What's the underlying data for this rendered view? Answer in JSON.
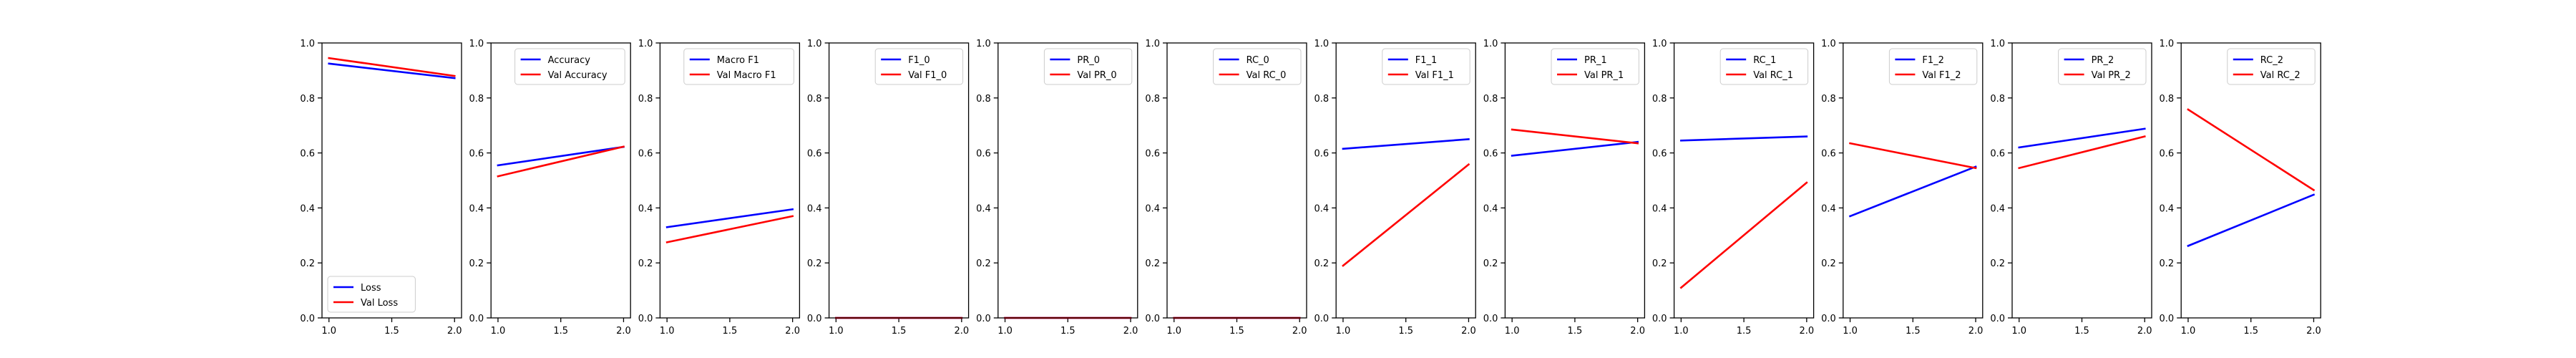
{
  "colors": {
    "train": "#0000ff",
    "val": "#ff0000"
  },
  "chart_data": [
    {
      "type": "line",
      "title": "",
      "xlabel": "",
      "ylabel": "",
      "xlim": [
        1.0,
        2.0
      ],
      "ylim": [
        0.0,
        1.0
      ],
      "x": [
        1.0,
        2.0
      ],
      "xticks": [
        "1.0",
        "1.5",
        "2.0"
      ],
      "yticks": [
        "0.0",
        "0.2",
        "0.4",
        "0.6",
        "0.8",
        "1.0"
      ],
      "legend": "lower-left",
      "series": [
        {
          "name": "Loss",
          "values": [
            0.925,
            0.872
          ]
        },
        {
          "name": "Val Loss",
          "values": [
            0.945,
            0.88
          ]
        }
      ]
    },
    {
      "type": "line",
      "title": "",
      "xlabel": "",
      "ylabel": "",
      "xlim": [
        1.0,
        2.0
      ],
      "ylim": [
        0.0,
        1.0
      ],
      "x": [
        1.0,
        2.0
      ],
      "xticks": [
        "1.0",
        "1.5",
        "2.0"
      ],
      "yticks": [
        "0.0",
        "0.2",
        "0.4",
        "0.6",
        "0.8",
        "1.0"
      ],
      "legend": "upper-right",
      "series": [
        {
          "name": "Accuracy",
          "values": [
            0.555,
            0.622
          ]
        },
        {
          "name": "Val Accuracy",
          "values": [
            0.515,
            0.623
          ]
        }
      ]
    },
    {
      "type": "line",
      "title": "",
      "xlabel": "",
      "ylabel": "",
      "xlim": [
        1.0,
        2.0
      ],
      "ylim": [
        0.0,
        1.0
      ],
      "x": [
        1.0,
        2.0
      ],
      "xticks": [
        "1.0",
        "1.5",
        "2.0"
      ],
      "yticks": [
        "0.0",
        "0.2",
        "0.4",
        "0.6",
        "0.8",
        "1.0"
      ],
      "legend": "upper-right",
      "series": [
        {
          "name": "Macro F1",
          "values": [
            0.33,
            0.395
          ]
        },
        {
          "name": "Val Macro F1",
          "values": [
            0.275,
            0.37
          ]
        }
      ]
    },
    {
      "type": "line",
      "title": "",
      "xlabel": "",
      "ylabel": "",
      "xlim": [
        1.0,
        2.0
      ],
      "ylim": [
        0.0,
        1.0
      ],
      "x": [
        1.0,
        2.0
      ],
      "xticks": [
        "1.0",
        "1.5",
        "2.0"
      ],
      "yticks": [
        "0.0",
        "0.2",
        "0.4",
        "0.6",
        "0.8",
        "1.0"
      ],
      "legend": "upper-right",
      "series": [
        {
          "name": "F1_0",
          "values": [
            0.0,
            0.0
          ]
        },
        {
          "name": "Val F1_0",
          "values": [
            0.0,
            0.0
          ]
        }
      ]
    },
    {
      "type": "line",
      "title": "",
      "xlabel": "",
      "ylabel": "",
      "xlim": [
        1.0,
        2.0
      ],
      "ylim": [
        0.0,
        1.0
      ],
      "x": [
        1.0,
        2.0
      ],
      "xticks": [
        "1.0",
        "1.5",
        "2.0"
      ],
      "yticks": [
        "0.0",
        "0.2",
        "0.4",
        "0.6",
        "0.8",
        "1.0"
      ],
      "legend": "upper-right",
      "series": [
        {
          "name": "PR_0",
          "values": [
            0.0,
            0.0
          ]
        },
        {
          "name": "Val PR_0",
          "values": [
            0.0,
            0.0
          ]
        }
      ]
    },
    {
      "type": "line",
      "title": "",
      "xlabel": "",
      "ylabel": "",
      "xlim": [
        1.0,
        2.0
      ],
      "ylim": [
        0.0,
        1.0
      ],
      "x": [
        1.0,
        2.0
      ],
      "xticks": [
        "1.0",
        "1.5",
        "2.0"
      ],
      "yticks": [
        "0.0",
        "0.2",
        "0.4",
        "0.6",
        "0.8",
        "1.0"
      ],
      "legend": "upper-right",
      "series": [
        {
          "name": "RC_0",
          "values": [
            0.0,
            0.0
          ]
        },
        {
          "name": "Val RC_0",
          "values": [
            0.0,
            0.0
          ]
        }
      ]
    },
    {
      "type": "line",
      "title": "",
      "xlabel": "",
      "ylabel": "",
      "xlim": [
        1.0,
        2.0
      ],
      "ylim": [
        0.0,
        1.0
      ],
      "x": [
        1.0,
        2.0
      ],
      "xticks": [
        "1.0",
        "1.5",
        "2.0"
      ],
      "yticks": [
        "0.0",
        "0.2",
        "0.4",
        "0.6",
        "0.8",
        "1.0"
      ],
      "legend": "upper-right",
      "series": [
        {
          "name": "F1_1",
          "values": [
            0.615,
            0.65
          ]
        },
        {
          "name": "Val F1_1",
          "values": [
            0.19,
            0.558
          ]
        }
      ]
    },
    {
      "type": "line",
      "title": "",
      "xlabel": "",
      "ylabel": "",
      "xlim": [
        1.0,
        2.0
      ],
      "ylim": [
        0.0,
        1.0
      ],
      "x": [
        1.0,
        2.0
      ],
      "xticks": [
        "1.0",
        "1.5",
        "2.0"
      ],
      "yticks": [
        "0.0",
        "0.2",
        "0.4",
        "0.6",
        "0.8",
        "1.0"
      ],
      "legend": "upper-right",
      "series": [
        {
          "name": "PR_1",
          "values": [
            0.59,
            0.64
          ]
        },
        {
          "name": "Val PR_1",
          "values": [
            0.685,
            0.635
          ]
        }
      ]
    },
    {
      "type": "line",
      "title": "",
      "xlabel": "",
      "ylabel": "",
      "xlim": [
        1.0,
        2.0
      ],
      "ylim": [
        0.0,
        1.0
      ],
      "x": [
        1.0,
        2.0
      ],
      "xticks": [
        "1.0",
        "1.5",
        "2.0"
      ],
      "yticks": [
        "0.0",
        "0.2",
        "0.4",
        "0.6",
        "0.8",
        "1.0"
      ],
      "legend": "upper-right",
      "series": [
        {
          "name": "RC_1",
          "values": [
            0.645,
            0.66
          ]
        },
        {
          "name": "Val RC_1",
          "values": [
            0.11,
            0.492
          ]
        }
      ]
    },
    {
      "type": "line",
      "title": "",
      "xlabel": "",
      "ylabel": "",
      "xlim": [
        1.0,
        2.0
      ],
      "ylim": [
        0.0,
        1.0
      ],
      "x": [
        1.0,
        2.0
      ],
      "xticks": [
        "1.0",
        "1.5",
        "2.0"
      ],
      "yticks": [
        "0.0",
        "0.2",
        "0.4",
        "0.6",
        "0.8",
        "1.0"
      ],
      "legend": "upper-right",
      "series": [
        {
          "name": "F1_2",
          "values": [
            0.37,
            0.55
          ]
        },
        {
          "name": "Val F1_2",
          "values": [
            0.635,
            0.545
          ]
        }
      ]
    },
    {
      "type": "line",
      "title": "",
      "xlabel": "",
      "ylabel": "",
      "xlim": [
        1.0,
        2.0
      ],
      "ylim": [
        0.0,
        1.0
      ],
      "x": [
        1.0,
        2.0
      ],
      "xticks": [
        "1.0",
        "1.5",
        "2.0"
      ],
      "yticks": [
        "0.0",
        "0.2",
        "0.4",
        "0.6",
        "0.8",
        "1.0"
      ],
      "legend": "upper-right",
      "series": [
        {
          "name": "PR_2",
          "values": [
            0.62,
            0.688
          ]
        },
        {
          "name": "Val PR_2",
          "values": [
            0.545,
            0.66
          ]
        }
      ]
    },
    {
      "type": "line",
      "title": "",
      "xlabel": "",
      "ylabel": "",
      "xlim": [
        1.0,
        2.0
      ],
      "ylim": [
        0.0,
        1.0
      ],
      "x": [
        1.0,
        2.0
      ],
      "xticks": [
        "1.0",
        "1.5",
        "2.0"
      ],
      "yticks": [
        "0.0",
        "0.2",
        "0.4",
        "0.6",
        "0.8",
        "1.0"
      ],
      "legend": "upper-right",
      "series": [
        {
          "name": "RC_2",
          "values": [
            0.262,
            0.448
          ]
        },
        {
          "name": "Val RC_2",
          "values": [
            0.758,
            0.465
          ]
        }
      ]
    }
  ]
}
